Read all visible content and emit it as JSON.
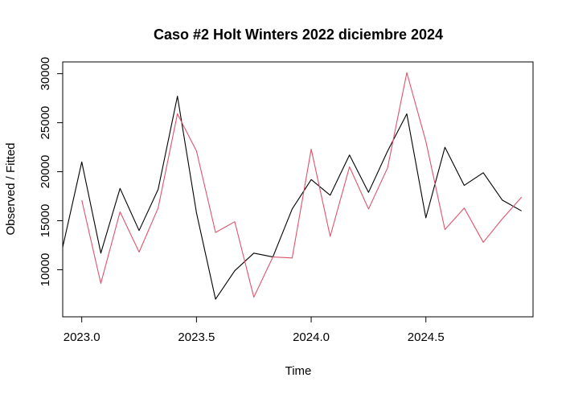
{
  "chart_data": {
    "type": "line",
    "title": "Caso #2 Holt Winters 2022 diciembre 2024",
    "xlabel": "Time",
    "ylabel": "Observed / Fitted",
    "xlim": [
      2022.917,
      2024.967
    ],
    "ylim": [
      5200,
      31200
    ],
    "x_ticks": [
      {
        "value": 2023.0,
        "label": "2023.0"
      },
      {
        "value": 2023.5,
        "label": "2023.5"
      },
      {
        "value": 2024.0,
        "label": "2024.0"
      },
      {
        "value": 2024.5,
        "label": "2024.5"
      }
    ],
    "y_ticks": [
      {
        "value": 10000,
        "label": "10000"
      },
      {
        "value": 15000,
        "label": "15000"
      },
      {
        "value": 20000,
        "label": "20000"
      },
      {
        "value": 25000,
        "label": "25000"
      },
      {
        "value": 30000,
        "label": "30000"
      }
    ],
    "grid": false,
    "legend": "none",
    "series": [
      {
        "color": "#000000",
        "x": [
          2022.917,
          2023.0,
          2023.083,
          2023.167,
          2023.25,
          2023.333,
          2023.417,
          2023.5,
          2023.583,
          2023.667,
          2023.75,
          2023.833,
          2023.917,
          2024.0,
          2024.083,
          2024.167,
          2024.25,
          2024.333,
          2024.417,
          2024.5,
          2024.583,
          2024.667,
          2024.75,
          2024.833,
          2024.917
        ],
        "values": [
          12300,
          21000,
          11700,
          18300,
          14000,
          18200,
          27700,
          15800,
          7000,
          9900,
          11700,
          11300,
          16200,
          19200,
          17600,
          21700,
          17900,
          22100,
          25900,
          15300,
          22500,
          18600,
          19900,
          17100,
          16000
        ]
      },
      {
        "color": "#DF536B",
        "x": [
          2023.0,
          2023.083,
          2023.167,
          2023.25,
          2023.333,
          2023.417,
          2023.5,
          2023.583,
          2023.667,
          2023.75,
          2023.833,
          2023.917,
          2024.0,
          2024.083,
          2024.167,
          2024.25,
          2024.333,
          2024.417,
          2024.5,
          2024.583,
          2024.667,
          2024.75,
          2024.833,
          2024.917
        ],
        "values": [
          17100,
          8600,
          15900,
          11800,
          16300,
          25900,
          22100,
          13800,
          14900,
          7200,
          11300,
          11200,
          22300,
          13400,
          20500,
          16200,
          20400,
          30100,
          23100,
          14100,
          16300,
          12800,
          15200,
          17400
        ]
      }
    ]
  }
}
